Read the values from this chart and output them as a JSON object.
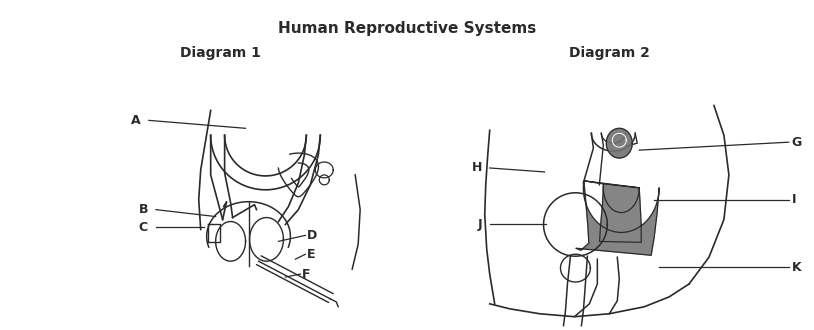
{
  "title": "Human Reproductive Systems",
  "diagram1_label": "Diagram 1",
  "diagram2_label": "Diagram 2",
  "bg_color": "#ffffff",
  "line_color": "#2a2a2a",
  "dark_fill": "#707070"
}
